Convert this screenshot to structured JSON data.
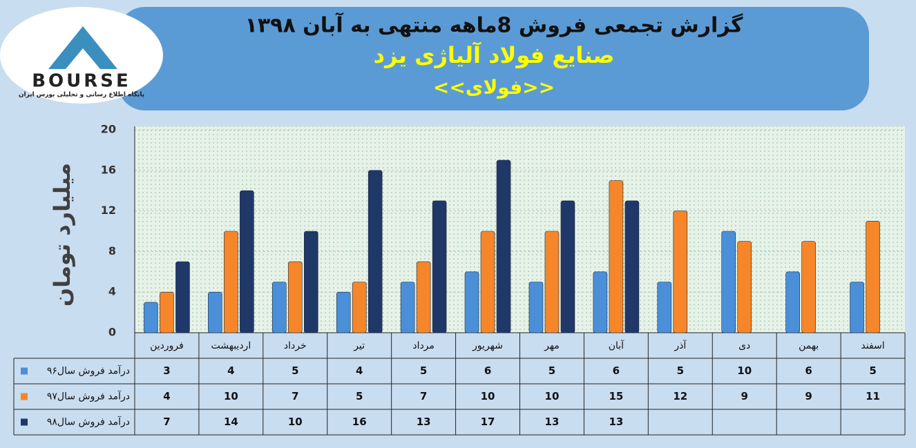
{
  "logo": {
    "brand": "BOURSE",
    "tagline": "پایگاه اطلاع رسانی و تحلیلی بورس ایران"
  },
  "chart_data": {
    "type": "bar",
    "title": "گزارش تجمعی فروش  8ماهه منتهی به آبان ۱۳۹۸",
    "subtitle": "صنایع فولاد آلیاژی یزد",
    "annotation": "<<فولای>>",
    "y_label": "میلیارد تومان",
    "categories": [
      "فروردین",
      "اردیبهشت",
      "خرداد",
      "تیر",
      "مرداد",
      "شهریور",
      "مهر",
      "آبان",
      "آذر",
      "دی",
      "بهمن",
      "اسفند"
    ],
    "series": [
      {
        "name": "درآمد فروش سال۹۶",
        "color": "#4a8fd8",
        "values": [
          3,
          4,
          5,
          4,
          5,
          6,
          5,
          6,
          5,
          10,
          6,
          5
        ]
      },
      {
        "name": "درآمد فروش سال۹۷",
        "color": "#f5862a",
        "values": [
          4,
          10,
          7,
          5,
          7,
          10,
          10,
          15,
          12,
          9,
          9,
          11
        ]
      },
      {
        "name": "درآمد فروش سال۹۸",
        "color": "#1f3868",
        "values": [
          7,
          14,
          10,
          16,
          13,
          17,
          13,
          13,
          null,
          null,
          null,
          null
        ]
      }
    ],
    "ylim": [
      0,
      20
    ],
    "yticks": [
      0,
      4,
      8,
      12,
      16,
      20
    ],
    "grid": true
  }
}
